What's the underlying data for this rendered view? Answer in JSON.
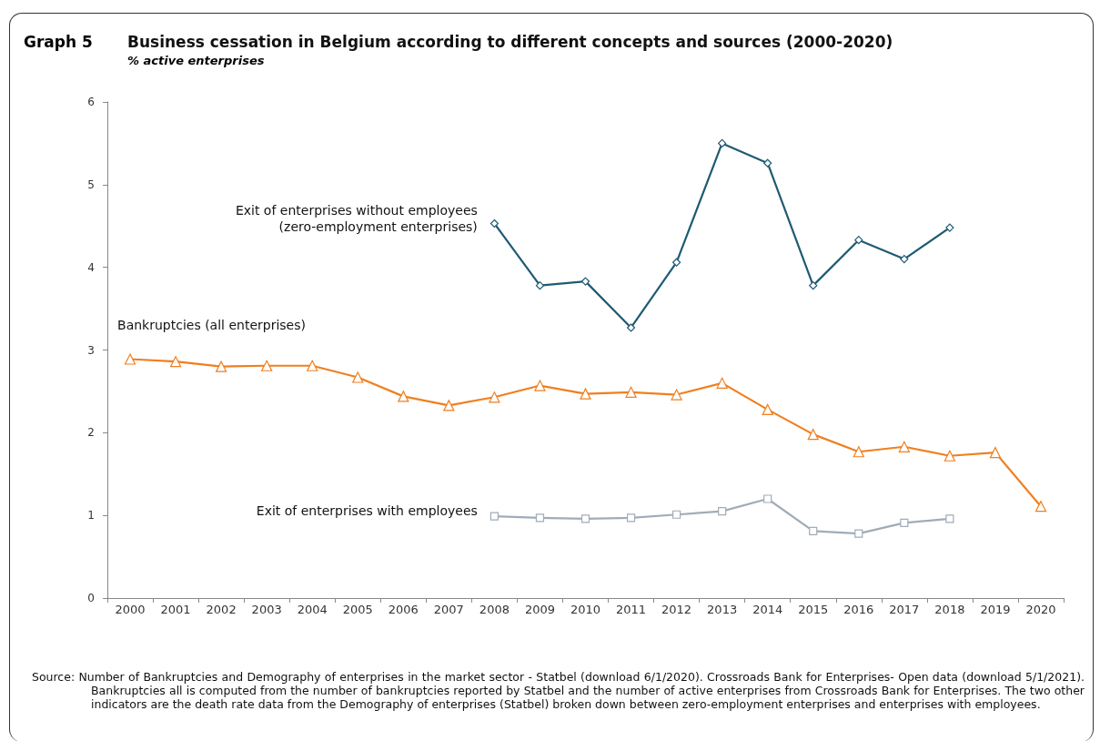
{
  "chart_data": {
    "type": "line",
    "title": "Business cessation in Belgium according to different concepts and sources (2000-2020)",
    "subtitle": "% active enterprises",
    "annotations": [
      "Graph 5",
      "Source: Number of Bankruptcies and Demography of enterprises in the market sector - Statbel (download 6/1/2020). Crossroads Bank for Enterprises- Open data (download 5/1/2021). Bankruptcies all is computed from the number of bankruptcies reported by Statbel and the number of active enterprises from Crossroads Bank for Enterprises. The two other indicators are the death rate data from the Demography of enterprises (Statbel) broken down between zero-employment enterprises and enterprises with employees."
    ],
    "categories": [
      "2000",
      "2001",
      "2002",
      "2003",
      "2004",
      "2005",
      "2006",
      "2007",
      "2008",
      "2009",
      "2010",
      "2011",
      "2012",
      "2013",
      "2014",
      "2015",
      "2016",
      "2017",
      "2018",
      "2019",
      "2020"
    ],
    "series": [
      {
        "name": "Exit of enterprises without employees\n(zero-employment enterprises)",
        "color": "#1f5a73",
        "marker": "diamond",
        "values": [
          null,
          null,
          null,
          null,
          null,
          null,
          null,
          null,
          4.53,
          3.78,
          3.83,
          3.27,
          4.06,
          5.5,
          5.26,
          3.78,
          4.33,
          4.1,
          4.48,
          null,
          null
        ]
      },
      {
        "name": "Bankruptcies (all enterprises)",
        "color": "#f07f1f",
        "marker": "triangle",
        "values": [
          2.89,
          2.86,
          2.8,
          2.81,
          2.81,
          2.67,
          2.44,
          2.33,
          2.43,
          2.57,
          2.47,
          2.49,
          2.46,
          2.6,
          2.28,
          1.98,
          1.77,
          1.83,
          1.72,
          1.76,
          1.11
        ]
      },
      {
        "name": "Exit of enterprises with employees",
        "color": "#a0acb8",
        "marker": "square",
        "values": [
          null,
          null,
          null,
          null,
          null,
          null,
          null,
          null,
          0.99,
          0.97,
          0.96,
          0.97,
          1.01,
          1.05,
          1.2,
          0.81,
          0.78,
          0.91,
          0.96,
          null,
          null
        ]
      }
    ],
    "ylim": [
      0,
      6
    ],
    "yticks": [
      0,
      1,
      2,
      3,
      4,
      5,
      6
    ],
    "grid": false,
    "legend": false
  }
}
